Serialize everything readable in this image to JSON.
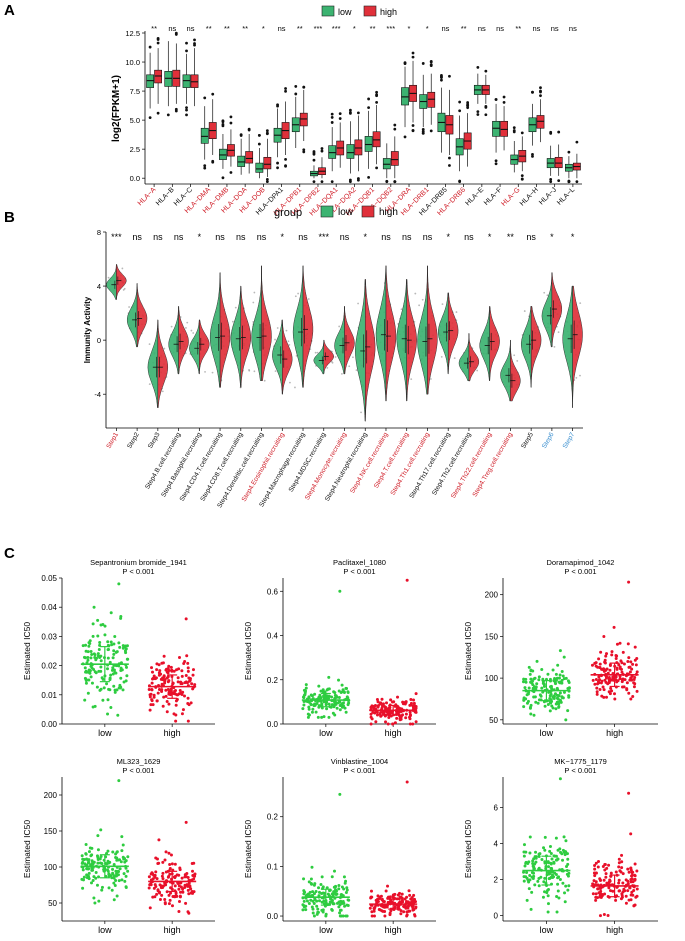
{
  "panels": {
    "a": "A",
    "b": "B",
    "c": "C"
  },
  "colors": {
    "low": "#3cb371",
    "high": "#e0303a",
    "low_dot": "#2ecc40",
    "high_dot": "#e8102a",
    "red_label": "#d0202a",
    "blue_label": "#3a8fd0",
    "black": "#000000"
  },
  "chart_data": [
    {
      "type": "box",
      "panel": "A",
      "legend": {
        "title": "",
        "entries": [
          "low",
          "high"
        ],
        "placement": "top"
      },
      "ylabel": "log2(FPKM+1)",
      "xlabel": "",
      "ylim": [
        -0.5,
        12.5
      ],
      "yticks": [
        0.0,
        2.5,
        5.0,
        7.5,
        10.0,
        12.5
      ],
      "ytick_labels": [
        "0.0",
        "2.5",
        "5.0",
        "7.5",
        "10.0",
        "12.5"
      ],
      "categories": [
        "HLA−A",
        "HLA−B",
        "HLA−C",
        "HLA−DMA",
        "HLA−DMB",
        "HLA−DOA",
        "HLA−DOB",
        "HLA−DPA1",
        "HLA−DPB1",
        "HLA−DPB2",
        "HLA−DQA1",
        "HLA−DQA2",
        "HLA−DQB1",
        "HLA−DQB2",
        "HLA−DRA",
        "HLA−DRB1",
        "HLA−DRB5",
        "HLA−DRB6",
        "HLA−E",
        "HLA−F",
        "HLA−G",
        "HLA−H",
        "HLA−J",
        "HLA−L"
      ],
      "category_red": [
        true,
        false,
        false,
        true,
        true,
        true,
        true,
        false,
        true,
        true,
        true,
        true,
        true,
        true,
        true,
        true,
        false,
        true,
        false,
        false,
        true,
        false,
        false,
        false
      ],
      "significance": [
        "**",
        "ns",
        "ns",
        "**",
        "**",
        "**",
        "*",
        "ns",
        "**",
        "***",
        "***",
        "*",
        "**",
        "***",
        "*",
        "*",
        "ns",
        "**",
        "ns",
        "ns",
        "**",
        "ns",
        "ns",
        "ns"
      ],
      "series": [
        {
          "name": "low",
          "medians": [
            8.4,
            8.6,
            8.4,
            3.6,
            2.0,
            1.4,
            0.8,
            3.7,
            4.6,
            0.4,
            2.2,
            2.2,
            2.9,
            1.2,
            7.0,
            6.6,
            4.8,
            2.7,
            7.6,
            4.3,
            1.6,
            4.6,
            1.3,
            0.9
          ],
          "q1": [
            7.8,
            7.9,
            7.8,
            3.0,
            1.6,
            1.0,
            0.5,
            3.1,
            4.0,
            0.2,
            1.7,
            1.7,
            2.3,
            0.8,
            6.3,
            6.0,
            4.0,
            2.0,
            7.2,
            3.6,
            1.2,
            4.0,
            0.9,
            0.6
          ],
          "q3": [
            8.9,
            9.2,
            8.9,
            4.3,
            2.5,
            1.9,
            1.3,
            4.3,
            5.2,
            0.6,
            2.8,
            2.9,
            3.6,
            1.7,
            7.8,
            7.2,
            5.6,
            3.4,
            8.0,
            4.9,
            2.0,
            5.2,
            1.7,
            1.2
          ],
          "whisker_low": [
            6.0,
            6.2,
            6.4,
            1.6,
            0.8,
            0.3,
            0.0,
            1.8,
            2.6,
            0.0,
            0.6,
            0.4,
            0.8,
            0.0,
            4.4,
            4.4,
            2.2,
            0.6,
            6.4,
            2.2,
            0.5,
            2.8,
            0.2,
            0.0
          ],
          "whisker_high": [
            10.8,
            11.8,
            10.7,
            6.2,
            3.8,
            3.4,
            2.6,
            6.0,
            7.0,
            1.1,
            4.4,
            4.9,
            5.8,
            3.0,
            9.6,
            8.9,
            7.8,
            5.4,
            9.0,
            6.4,
            3.2,
            6.4,
            2.8,
            1.9
          ]
        },
        {
          "name": "high",
          "medians": [
            8.8,
            8.6,
            8.3,
            4.1,
            2.4,
            1.7,
            1.2,
            4.1,
            5.1,
            0.6,
            2.6,
            2.6,
            3.3,
            1.6,
            7.3,
            6.8,
            4.6,
            3.2,
            7.6,
            4.2,
            1.9,
            4.9,
            1.3,
            1.0
          ],
          "q1": [
            8.2,
            7.9,
            7.8,
            3.4,
            1.9,
            1.3,
            0.8,
            3.4,
            4.5,
            0.3,
            2.0,
            2.0,
            2.7,
            1.1,
            6.6,
            6.1,
            3.8,
            2.5,
            7.2,
            3.6,
            1.4,
            4.3,
            0.9,
            0.7
          ],
          "q3": [
            9.3,
            9.3,
            8.9,
            4.8,
            2.9,
            2.3,
            1.8,
            4.8,
            5.6,
            0.9,
            3.2,
            3.3,
            4.0,
            2.3,
            8.0,
            7.4,
            5.4,
            3.9,
            8.0,
            4.9,
            2.4,
            5.4,
            1.8,
            1.3
          ],
          "whisker_low": [
            6.4,
            6.4,
            6.2,
            2.0,
            1.0,
            0.4,
            0.1,
            2.0,
            3.2,
            0.0,
            0.9,
            0.6,
            1.2,
            0.0,
            4.8,
            4.6,
            2.0,
            1.0,
            6.4,
            2.4,
            0.6,
            3.1,
            0.2,
            0.0
          ],
          "whisker_high": [
            11.2,
            11.6,
            11.2,
            6.8,
            4.2,
            3.8,
            3.4,
            6.6,
            7.6,
            1.8,
            4.8,
            5.4,
            6.3,
            3.6,
            10.1,
            9.0,
            7.6,
            5.6,
            8.9,
            6.2,
            3.6,
            6.8,
            2.9,
            2.1
          ]
        }
      ]
    },
    {
      "type": "violin",
      "panel": "B",
      "legend": {
        "title": "group",
        "entries": [
          "low",
          "high"
        ],
        "placement": "top"
      },
      "ylabel": "Immunity Activity",
      "ylim": [
        -6.5,
        8
      ],
      "yticks": [
        -4,
        0,
        4,
        8
      ],
      "ytick_labels": [
        "-4",
        "0",
        "4",
        "8"
      ],
      "categories": [
        "Step1",
        "Step2",
        "Step3",
        "Step4.B.cell.recruiting",
        "Step4.Basophil.recruiting",
        "Step4.CD4.T.cell.recruiting",
        "Step4.CD8.T.cell.recruiting",
        "Step4.Dendritic.cell.recruiting",
        "Step4.Eosinophil.recruiting",
        "Step4.Macrophage.recruiting",
        "Step4.MDSC.recruiting",
        "Step4.Monocyte.recruiting",
        "Step4.Neutrophil.recruiting",
        "Step4.NK.cell.recruiting",
        "Step4.T.cell.recruiting",
        "Step4.Th1.cell.recruiting",
        "Step4.Th17.cell.recruiting",
        "Step4.Th2.cell.recruiting",
        "Step4.Th22.cell.recruiting",
        "Step4.Treg.cell.recruiting",
        "Step5",
        "Step6",
        "Step7"
      ],
      "category_color": [
        "red",
        "black",
        "black",
        "black",
        "black",
        "black",
        "black",
        "black",
        "red",
        "black",
        "black",
        "red",
        "black",
        "red",
        "red",
        "red",
        "black",
        "black",
        "red",
        "red",
        "black",
        "blue",
        "blue"
      ],
      "significance": [
        "***",
        "ns",
        "ns",
        "ns",
        "*",
        "ns",
        "ns",
        "ns",
        "*",
        "ns",
        "***",
        "ns",
        "*",
        "ns",
        "ns",
        "ns",
        "*",
        "ns",
        "*",
        "**",
        "ns",
        "*",
        "*"
      ],
      "series": [
        {
          "name": "low",
          "medians": [
            4.1,
            1.5,
            -2.0,
            -0.3,
            -0.6,
            0.2,
            0.1,
            0.2,
            -1.1,
            0.6,
            -1.5,
            -0.4,
            -0.8,
            0.4,
            0.1,
            -0.1,
            0.6,
            -1.7,
            -0.4,
            -2.6,
            -0.3,
            1.8,
            0.1
          ]
        },
        {
          "name": "high",
          "medians": [
            4.4,
            1.6,
            -2.0,
            -0.1,
            -0.3,
            0.3,
            0.2,
            0.3,
            -1.4,
            0.8,
            -1.2,
            -0.2,
            -0.5,
            0.3,
            0.0,
            0.1,
            0.7,
            -1.6,
            -0.1,
            -3.0,
            0.0,
            2.3,
            0.4
          ]
        }
      ],
      "ranges": [
        [
          3.0,
          5.6
        ],
        [
          -0.5,
          4.2
        ],
        [
          -5.0,
          1.5
        ],
        [
          -2.5,
          2.5
        ],
        [
          -2.5,
          1.5
        ],
        [
          -3.5,
          5.0
        ],
        [
          -3.5,
          4.0
        ],
        [
          -3.0,
          5.5
        ],
        [
          -4.0,
          1.5
        ],
        [
          -3.5,
          5.5
        ],
        [
          -2.5,
          0.0
        ],
        [
          -2.5,
          2.5
        ],
        [
          -6.0,
          4.5
        ],
        [
          -4.5,
          5.5
        ],
        [
          -4.5,
          4.5
        ],
        [
          -4.0,
          5.5
        ],
        [
          -2.5,
          3.5
        ],
        [
          -3.0,
          0.5
        ],
        [
          -3.0,
          2.5
        ],
        [
          -4.5,
          0.0
        ],
        [
          -3.5,
          2.5
        ],
        [
          -0.5,
          5.0
        ],
        [
          -5.0,
          4.0
        ]
      ]
    },
    {
      "type": "scatter",
      "panel": "C",
      "title": "Sepantronium bromide_1941",
      "pvalue": "P < 0.001",
      "ylabel": "Estimated IC50",
      "categories": [
        "low",
        "high"
      ],
      "ylim": [
        0,
        0.05
      ],
      "yticks": [
        0.0,
        0.01,
        0.02,
        0.03,
        0.04,
        0.05
      ],
      "ytick_labels": [
        "0.00",
        "0.01",
        "0.02",
        "0.03",
        "0.04",
        "0.05"
      ],
      "means": [
        0.0205,
        0.0128
      ],
      "sd": [
        0.006,
        0.004
      ],
      "min": [
        0.003,
        0.001
      ],
      "max": [
        0.048,
        0.036
      ]
    },
    {
      "type": "scatter",
      "panel": "C",
      "title": "Paclitaxel_1080",
      "pvalue": "P < 0.001",
      "ylabel": "Estimated IC50",
      "categories": [
        "low",
        "high"
      ],
      "ylim": [
        0,
        0.66
      ],
      "yticks": [
        0.0,
        0.2,
        0.4,
        0.6
      ],
      "ytick_labels": [
        "0.0",
        "0.2",
        "0.4",
        "0.6"
      ],
      "means": [
        0.108,
        0.062
      ],
      "sd": [
        0.03,
        0.022
      ],
      "min": [
        0.03,
        0.0
      ],
      "max": [
        0.6,
        0.65
      ]
    },
    {
      "type": "scatter",
      "panel": "C",
      "title": "Doramapimod_1042",
      "pvalue": "P < 0.001",
      "ylabel": "Estimated IC50",
      "categories": [
        "low",
        "high"
      ],
      "ylim": [
        45,
        220
      ],
      "yticks": [
        50,
        100,
        150,
        200
      ],
      "ytick_labels": [
        "50",
        "100",
        "150",
        "200"
      ],
      "means": [
        85,
        104
      ],
      "sd": [
        12,
        14
      ],
      "min": [
        50,
        60
      ],
      "max": [
        133,
        215
      ]
    },
    {
      "type": "scatter",
      "panel": "C",
      "title": "ML323_1629",
      "pvalue": "P < 0.001",
      "ylabel": "Estimated IC50",
      "categories": [
        "low",
        "high"
      ],
      "ylim": [
        25,
        225
      ],
      "yticks": [
        50,
        100,
        150,
        200
      ],
      "ytick_labels": [
        "50",
        "100",
        "150",
        "200"
      ],
      "means": [
        101,
        80
      ],
      "sd": [
        16,
        14
      ],
      "min": [
        50,
        28
      ],
      "max": [
        220,
        162
      ]
    },
    {
      "type": "scatter",
      "panel": "C",
      "title": "Vinblastine_1004",
      "pvalue": "P < 0.001",
      "ylabel": "Estimated IC50",
      "categories": [
        "low",
        "high"
      ],
      "ylim": [
        -0.01,
        0.28
      ],
      "yticks": [
        0.0,
        0.1,
        0.2
      ],
      "ytick_labels": [
        "0.0",
        "0.1",
        "0.2"
      ],
      "means": [
        0.038,
        0.024
      ],
      "sd": [
        0.016,
        0.01
      ],
      "min": [
        0.0,
        0.0
      ],
      "max": [
        0.245,
        0.27
      ]
    },
    {
      "type": "scatter",
      "panel": "C",
      "title": "MK−1775_1179",
      "pvalue": "P < 0.001",
      "ylabel": "Estimated IC50",
      "categories": [
        "low",
        "high"
      ],
      "ylim": [
        -0.3,
        7.7
      ],
      "yticks": [
        0,
        2,
        4,
        6
      ],
      "ytick_labels": [
        "0",
        "2",
        "4",
        "6"
      ],
      "means": [
        2.5,
        1.65
      ],
      "sd": [
        0.8,
        0.6
      ],
      "min": [
        0.2,
        0.0
      ],
      "max": [
        7.6,
        6.8
      ]
    }
  ]
}
